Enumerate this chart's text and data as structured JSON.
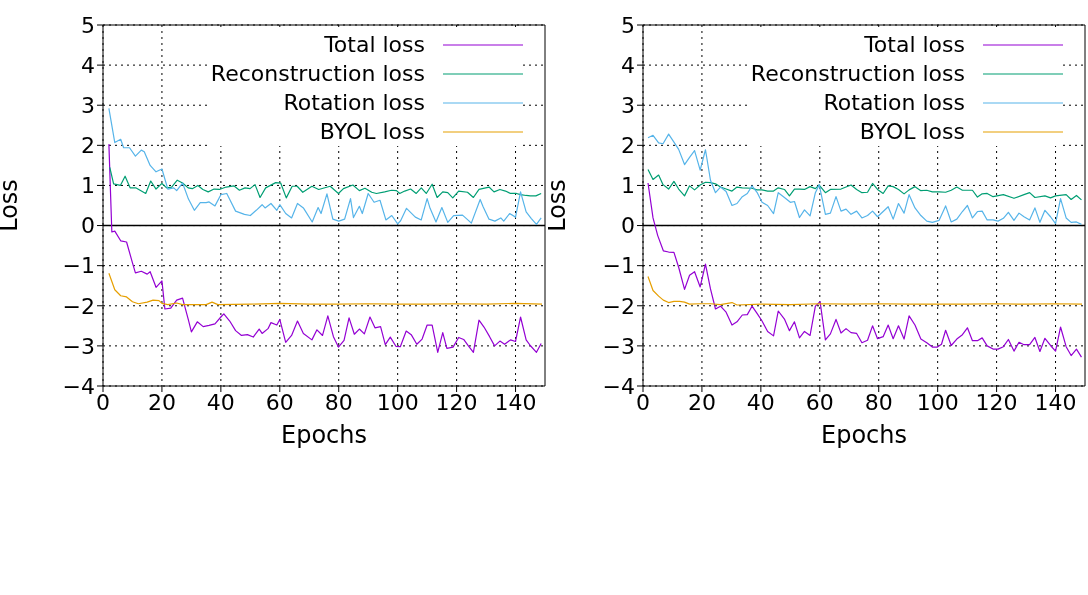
{
  "chart_data": [
    {
      "type": "line",
      "xlabel": "Epochs",
      "ylabel": "Loss",
      "xlim": [
        0,
        150
      ],
      "xticks": [
        0,
        20,
        40,
        60,
        80,
        100,
        120,
        140
      ],
      "ylim": [
        -4,
        5
      ],
      "yticks": [
        {
          "value": -4,
          "label": "−4"
        },
        {
          "value": -3,
          "label": "−3"
        },
        {
          "value": -2,
          "label": "−2"
        },
        {
          "value": -1,
          "label": "−1"
        },
        0,
        1,
        2,
        3,
        4,
        5
      ],
      "grid": true,
      "legend": "top right",
      "marker": "none",
      "line_style": "solid",
      "ref_lines": [
        {
          "axis": "y",
          "value": 0,
          "color": "#000000"
        }
      ],
      "series": [
        {
          "name": "Total loss",
          "color": "#9400d3",
          "x": [
            2,
            3,
            4,
            6,
            8,
            10,
            11,
            13,
            15,
            16,
            18,
            20,
            21,
            23,
            25,
            27,
            29,
            30,
            32,
            34,
            36,
            38,
            40,
            41,
            43,
            45,
            47,
            49,
            51,
            53,
            54,
            56,
            57,
            59,
            60,
            62,
            64,
            66,
            68,
            70.9,
            72.6,
            74.5,
            76.3,
            78.2,
            79.9,
            81.8,
            83.5,
            85.3,
            87,
            88.7,
            90.6,
            92.3,
            94.2,
            95.8,
            97.5,
            99.4,
            100.9,
            102.9,
            104.6,
            106.5,
            108.3,
            110,
            111.7,
            113.6,
            115.3,
            116.7,
            118.8,
            120.7,
            122.4,
            124,
            125.7,
            127.6,
            129.3,
            131.2,
            132.9,
            134.7,
            136.3,
            138.3,
            140,
            141.7,
            143.6,
            145,
            147.1,
            148.7
          ],
          "values": [
            2.03,
            -0.16,
            -0.14,
            -0.38,
            -0.41,
            -0.93,
            -1.18,
            -1.14,
            -1.21,
            -1.15,
            -1.54,
            -1.38,
            -2.08,
            -2.06,
            -1.86,
            -1.81,
            -2.36,
            -2.65,
            -2.4,
            -2.52,
            -2.49,
            -2.45,
            -2.28,
            -2.2,
            -2.38,
            -2.62,
            -2.74,
            -2.72,
            -2.78,
            -2.58,
            -2.69,
            -2.57,
            -2.42,
            -2.48,
            -2.34,
            -2.91,
            -2.74,
            -2.38,
            -2.69,
            -2.85,
            -2.6,
            -2.74,
            -2.25,
            -2.77,
            -3.03,
            -2.86,
            -2.3,
            -2.71,
            -2.58,
            -2.7,
            -2.28,
            -2.55,
            -2.52,
            -2.97,
            -2.78,
            -3.01,
            -3.02,
            -2.63,
            -2.72,
            -2.96,
            -2.83,
            -2.48,
            -2.48,
            -3.16,
            -2.67,
            -3.06,
            -3.03,
            -2.79,
            -2.84,
            -3.0,
            -3.16,
            -2.36,
            -2.53,
            -2.77,
            -3.0,
            -2.88,
            -2.96,
            -2.85,
            -2.89,
            -2.28,
            -2.85,
            -2.99,
            -3.16,
            -2.94
          ]
        },
        {
          "name": "Reconstruction loss",
          "color": "#009e73",
          "x": [
            2.3,
            3.6,
            5.9,
            7.5,
            9.2,
            11.1,
            14.5,
            16.2,
            18,
            20,
            21.6,
            23.3,
            25.2,
            27,
            28.9,
            30.3,
            32.2,
            33.9,
            35.7,
            37.7,
            39.5,
            41.8,
            44.4,
            46.3,
            48.2,
            49.9,
            51.6,
            53.3,
            55.2,
            58.6,
            60.3,
            62.2,
            64.2,
            65.9,
            67.8,
            70.9,
            73.2,
            77.1,
            79.9,
            81.6,
            84.8,
            87,
            88.9,
            91.2,
            92.8,
            95.6,
            97.9,
            99.6,
            100.7,
            102.4,
            104.4,
            106.3,
            108,
            109.7,
            111.7,
            113.4,
            115.3,
            117,
            118.7,
            120.7,
            123.7,
            125.7,
            127.6,
            131,
            132.7,
            134.7,
            136.6,
            138.3,
            140.3,
            141.7,
            143.6,
            145,
            146.9,
            148.7
          ],
          "values": [
            1.45,
            1.04,
            1.0,
            1.23,
            0.94,
            0.94,
            0.8,
            1.11,
            0.91,
            1.05,
            0.94,
            0.96,
            1.13,
            1.06,
            0.94,
            0.92,
            1.0,
            0.9,
            0.84,
            0.91,
            0.9,
            0.96,
            0.99,
            0.88,
            0.94,
            0.92,
            1.02,
            0.7,
            0.94,
            1.07,
            1.06,
            0.69,
            0.98,
            0.98,
            0.83,
            0.98,
            0.9,
            0.98,
            0.8,
            0.92,
            1.01,
            0.87,
            0.93,
            0.83,
            0.8,
            0.84,
            0.88,
            0.87,
            0.8,
            0.86,
            0.91,
            0.8,
            0.94,
            0.8,
            1.03,
            0.7,
            0.84,
            0.82,
            0.69,
            0.86,
            0.83,
            0.7,
            0.9,
            0.96,
            0.84,
            0.9,
            0.86,
            0.8,
            0.8,
            0.77,
            0.75,
            0.74,
            0.74,
            0.8
          ]
        },
        {
          "name": "Rotation loss",
          "color": "#56b4e9",
          "x": [
            2,
            4,
            6,
            7,
            9,
            11,
            13,
            14,
            16,
            18,
            20,
            22,
            24,
            25,
            27,
            29,
            31,
            33,
            35,
            36,
            38,
            40,
            42,
            45,
            48,
            50,
            52,
            54,
            55,
            57,
            59,
            60,
            62,
            64,
            66,
            68,
            71,
            73,
            74,
            76,
            78,
            80,
            82,
            84,
            85,
            87,
            88,
            90,
            92,
            94,
            96,
            98,
            100,
            101,
            103,
            106,
            108,
            110,
            111,
            113,
            115,
            117,
            119,
            122,
            124,
            125,
            128,
            129,
            131,
            133,
            135,
            136,
            138,
            140,
            141.7,
            143.6,
            145.3,
            147.1,
            148.7
          ],
          "values": [
            2.92,
            2.07,
            2.15,
            1.94,
            1.94,
            1.73,
            1.88,
            1.84,
            1.5,
            1.34,
            1.41,
            0.91,
            0.94,
            0.87,
            1.06,
            0.66,
            0.38,
            0.57,
            0.57,
            0.59,
            0.49,
            0.77,
            0.8,
            0.36,
            0.28,
            0.25,
            0.38,
            0.52,
            0.44,
            0.55,
            0.38,
            0.52,
            0.3,
            0.19,
            0.55,
            0.44,
            0.09,
            0.45,
            0.3,
            0.79,
            0.16,
            0.11,
            0.16,
            0.67,
            0.2,
            0.48,
            0.3,
            0.8,
            0.58,
            0.63,
            0.14,
            0.25,
            0.04,
            0.12,
            0.43,
            0.21,
            0.14,
            0.67,
            0.43,
            0.09,
            0.45,
            0.08,
            0.25,
            0.26,
            0.13,
            0.06,
            0.65,
            0.47,
            0.16,
            0.11,
            0.19,
            0.11,
            0.3,
            0.21,
            0.84,
            0.34,
            0.18,
            0.03,
            0.19
          ]
        },
        {
          "name": "BYOL loss",
          "color": "#e69f00",
          "x": [
            2,
            4,
            6,
            8,
            10,
            12,
            15,
            17,
            19,
            20,
            22,
            25,
            27,
            35,
            37,
            39,
            50,
            60,
            70,
            80,
            90,
            100,
            110,
            120,
            130,
            140,
            149
          ],
          "values": [
            -1.19,
            -1.6,
            -1.75,
            -1.78,
            -1.9,
            -1.95,
            -1.91,
            -1.86,
            -1.87,
            -1.94,
            -1.97,
            -1.93,
            -1.97,
            -1.97,
            -1.91,
            -1.97,
            -1.96,
            -1.94,
            -1.96,
            -1.96,
            -1.95,
            -1.96,
            -1.96,
            -1.95,
            -1.96,
            -1.94,
            -1.96
          ]
        }
      ]
    },
    {
      "type": "line",
      "xlabel": "Epochs",
      "ylabel": "Loss",
      "xlim": [
        0,
        150
      ],
      "xticks": [
        0,
        20,
        40,
        60,
        80,
        100,
        120,
        140
      ],
      "ylim": [
        -4,
        5
      ],
      "yticks": [
        {
          "value": -4,
          "label": "−4"
        },
        {
          "value": -3,
          "label": "−3"
        },
        {
          "value": -2,
          "label": "−2"
        },
        {
          "value": -1,
          "label": "−1"
        },
        0,
        1,
        2,
        3,
        4,
        5
      ],
      "grid": true,
      "legend": "top right",
      "marker": "none",
      "line_style": "solid",
      "ref_lines": [
        {
          "axis": "y",
          "value": 0,
          "color": "#000000"
        }
      ],
      "series": [
        {
          "name": "Total loss",
          "color": "#9400d3",
          "x": [
            1.7,
            3.4,
            5,
            6.9,
            8.7,
            10.5,
            12.1,
            14.1,
            15.8,
            17.5,
            19.4,
            21.2,
            22.9,
            24.6,
            26.3,
            28.2,
            30.2,
            31.9,
            33.7,
            35.4,
            37,
            38.7,
            40.4,
            42.3,
            44.3,
            45.9,
            48,
            49.7,
            51.4,
            53.1,
            54.8,
            56.7,
            58.5,
            60.1,
            61.9,
            63.6,
            65.5,
            67.2,
            68.9,
            70.6,
            72.5,
            74.3,
            76.2,
            77.9,
            79.6,
            81.5,
            83.2,
            84.9,
            86.7,
            88.6,
            90.3,
            92.3,
            94.3,
            96.3,
            98.2,
            99.9,
            101.3,
            102.7,
            104.6,
            106.5,
            108.4,
            110.1,
            111.8,
            113.5,
            115.1,
            116.8,
            118.8,
            120.5,
            122.3,
            124,
            125.9,
            127.6,
            129.3,
            131.2,
            133,
            134.7,
            136.4,
            138.3,
            140,
            141.7,
            143.6,
            145.3,
            147.1,
            148.8
          ],
          "values": [
            1.06,
            0.19,
            -0.25,
            -0.63,
            -0.66,
            -0.67,
            -1.04,
            -1.59,
            -1.24,
            -1.15,
            -1.53,
            -0.96,
            -1.58,
            -2.08,
            -2.01,
            -2.16,
            -2.48,
            -2.4,
            -2.23,
            -2.22,
            -2.01,
            -2.19,
            -2.38,
            -2.64,
            -2.75,
            -2.13,
            -2.33,
            -2.62,
            -2.4,
            -2.8,
            -2.64,
            -2.74,
            -2.01,
            -1.9,
            -2.85,
            -2.7,
            -2.34,
            -2.68,
            -2.57,
            -2.67,
            -2.69,
            -2.92,
            -2.86,
            -2.5,
            -2.82,
            -2.77,
            -2.48,
            -2.82,
            -2.5,
            -2.83,
            -2.25,
            -2.48,
            -2.83,
            -2.92,
            -3.03,
            -3.03,
            -2.96,
            -2.61,
            -2.99,
            -2.83,
            -2.72,
            -2.55,
            -2.87,
            -2.87,
            -2.8,
            -3.0,
            -3.08,
            -3.08,
            -3.02,
            -2.84,
            -3.13,
            -2.91,
            -2.97,
            -2.97,
            -2.79,
            -3.14,
            -2.81,
            -2.99,
            -3.13,
            -2.53,
            -3.02,
            -3.24,
            -3.08,
            -3.28
          ]
        },
        {
          "name": "Reconstruction loss",
          "color": "#009e73",
          "x": [
            1.7,
            3.4,
            5.3,
            6.8,
            8.7,
            10.5,
            12.1,
            14.1,
            15.8,
            17.5,
            19.4,
            21.2,
            22.9,
            24.6,
            26.3,
            28.2,
            30.2,
            31.9,
            33.7,
            37,
            38.7,
            40.4,
            42.3,
            44.3,
            45.9,
            48,
            49.7,
            51.4,
            53.1,
            54.8,
            56.7,
            58.5,
            59.8,
            61.9,
            63.6,
            67.2,
            70.6,
            72.5,
            74.3,
            76.2,
            77.9,
            79.6,
            81.5,
            83.2,
            84.9,
            86.7,
            88.6,
            90.3,
            92.3,
            94.3,
            96.3,
            98.2,
            100.5,
            102.7,
            104.6,
            106.5,
            108.4,
            111.8,
            113.5,
            115.1,
            116.8,
            118.8,
            122.3,
            125.9,
            129.3,
            131.2,
            133,
            136.4,
            138.3,
            140,
            143.6,
            145.3,
            147.1,
            148.8
          ],
          "values": [
            1.4,
            1.15,
            1.26,
            1.02,
            0.91,
            1.1,
            0.91,
            0.74,
            0.99,
            0.89,
            1.01,
            1.08,
            1.07,
            1.04,
            0.96,
            0.91,
            0.86,
            0.96,
            0.94,
            0.93,
            0.89,
            0.89,
            0.86,
            0.86,
            0.94,
            0.9,
            0.74,
            0.91,
            0.91,
            0.9,
            0.97,
            0.92,
            1.01,
            0.82,
            0.9,
            0.91,
            1.01,
            0.9,
            0.82,
            0.83,
            1.05,
            0.9,
            0.8,
            0.99,
            0.97,
            0.9,
            0.79,
            0.89,
            0.97,
            0.87,
            0.88,
            0.84,
            0.84,
            0.83,
            0.88,
            0.96,
            0.88,
            0.88,
            0.71,
            0.79,
            0.8,
            0.72,
            0.77,
            0.68,
            0.77,
            0.82,
            0.7,
            0.74,
            0.69,
            0.74,
            0.77,
            0.65,
            0.75,
            0.64
          ]
        },
        {
          "name": "Rotation loss",
          "color": "#56b4e9",
          "x": [
            1.7,
            3.4,
            5.3,
            6.8,
            8.7,
            10.5,
            12.1,
            14.1,
            15.8,
            17.5,
            19.4,
            21.2,
            22.9,
            24.6,
            26.3,
            28.2,
            30.2,
            31.9,
            33.7,
            35.4,
            37,
            38.7,
            40.4,
            42.3,
            44.3,
            45.9,
            48,
            50,
            51.4,
            53.1,
            54.8,
            56.7,
            58.5,
            59.8,
            61.9,
            63.6,
            65.5,
            67.2,
            68.9,
            70.6,
            72.5,
            74.3,
            76.2,
            77.9,
            79.6,
            81.5,
            83.2,
            84.9,
            86.7,
            88.6,
            90.3,
            92.3,
            94.3,
            96.3,
            98.2,
            100.5,
            102.7,
            104.6,
            106.5,
            108.4,
            110.1,
            111.8,
            113.5,
            115.1,
            116.8,
            118.8,
            120.5,
            122.3,
            124,
            125.9,
            127.6,
            129.3,
            131.2,
            133,
            134.7,
            136.4,
            138.3,
            140,
            141.7,
            143.6,
            145.3,
            147.1,
            148.8
          ],
          "values": [
            2.19,
            2.25,
            2.06,
            2.04,
            2.28,
            2.08,
            1.9,
            1.52,
            1.7,
            1.87,
            1.38,
            1.89,
            1.13,
            0.82,
            0.96,
            0.85,
            0.5,
            0.55,
            0.72,
            0.8,
            0.99,
            0.83,
            0.58,
            0.5,
            0.3,
            0.82,
            0.7,
            0.58,
            0.6,
            0.2,
            0.39,
            0.24,
            0.82,
            1.02,
            0.28,
            0.31,
            0.72,
            0.36,
            0.41,
            0.28,
            0.36,
            0.19,
            0.25,
            0.36,
            0.22,
            0.35,
            0.47,
            0.16,
            0.55,
            0.31,
            0.77,
            0.44,
            0.25,
            0.11,
            0.08,
            0.13,
            0.49,
            0.09,
            0.16,
            0.35,
            0.5,
            0.19,
            0.35,
            0.36,
            0.14,
            0.14,
            0.11,
            0.18,
            0.33,
            0.13,
            0.31,
            0.22,
            0.14,
            0.44,
            0.08,
            0.38,
            0.22,
            0.05,
            0.67,
            0.19,
            0.08,
            0.09,
            0.03
          ]
        },
        {
          "name": "BYOL loss",
          "color": "#e69f00",
          "x": [
            1.7,
            3.4,
            5.3,
            6.9,
            8.7,
            10.5,
            12.4,
            14.1,
            15.8,
            19.4,
            22.9,
            26.3,
            30.2,
            31.9,
            40,
            50,
            60,
            70,
            80,
            90,
            100,
            110,
            120,
            130,
            140,
            149
          ],
          "values": [
            -1.27,
            -1.62,
            -1.76,
            -1.86,
            -1.92,
            -1.89,
            -1.89,
            -1.91,
            -1.96,
            -1.95,
            -1.95,
            -1.97,
            -1.92,
            -1.98,
            -1.96,
            -1.97,
            -1.95,
            -1.96,
            -1.95,
            -1.96,
            -1.96,
            -1.96,
            -1.95,
            -1.96,
            -1.95,
            -1.96
          ]
        }
      ]
    }
  ]
}
